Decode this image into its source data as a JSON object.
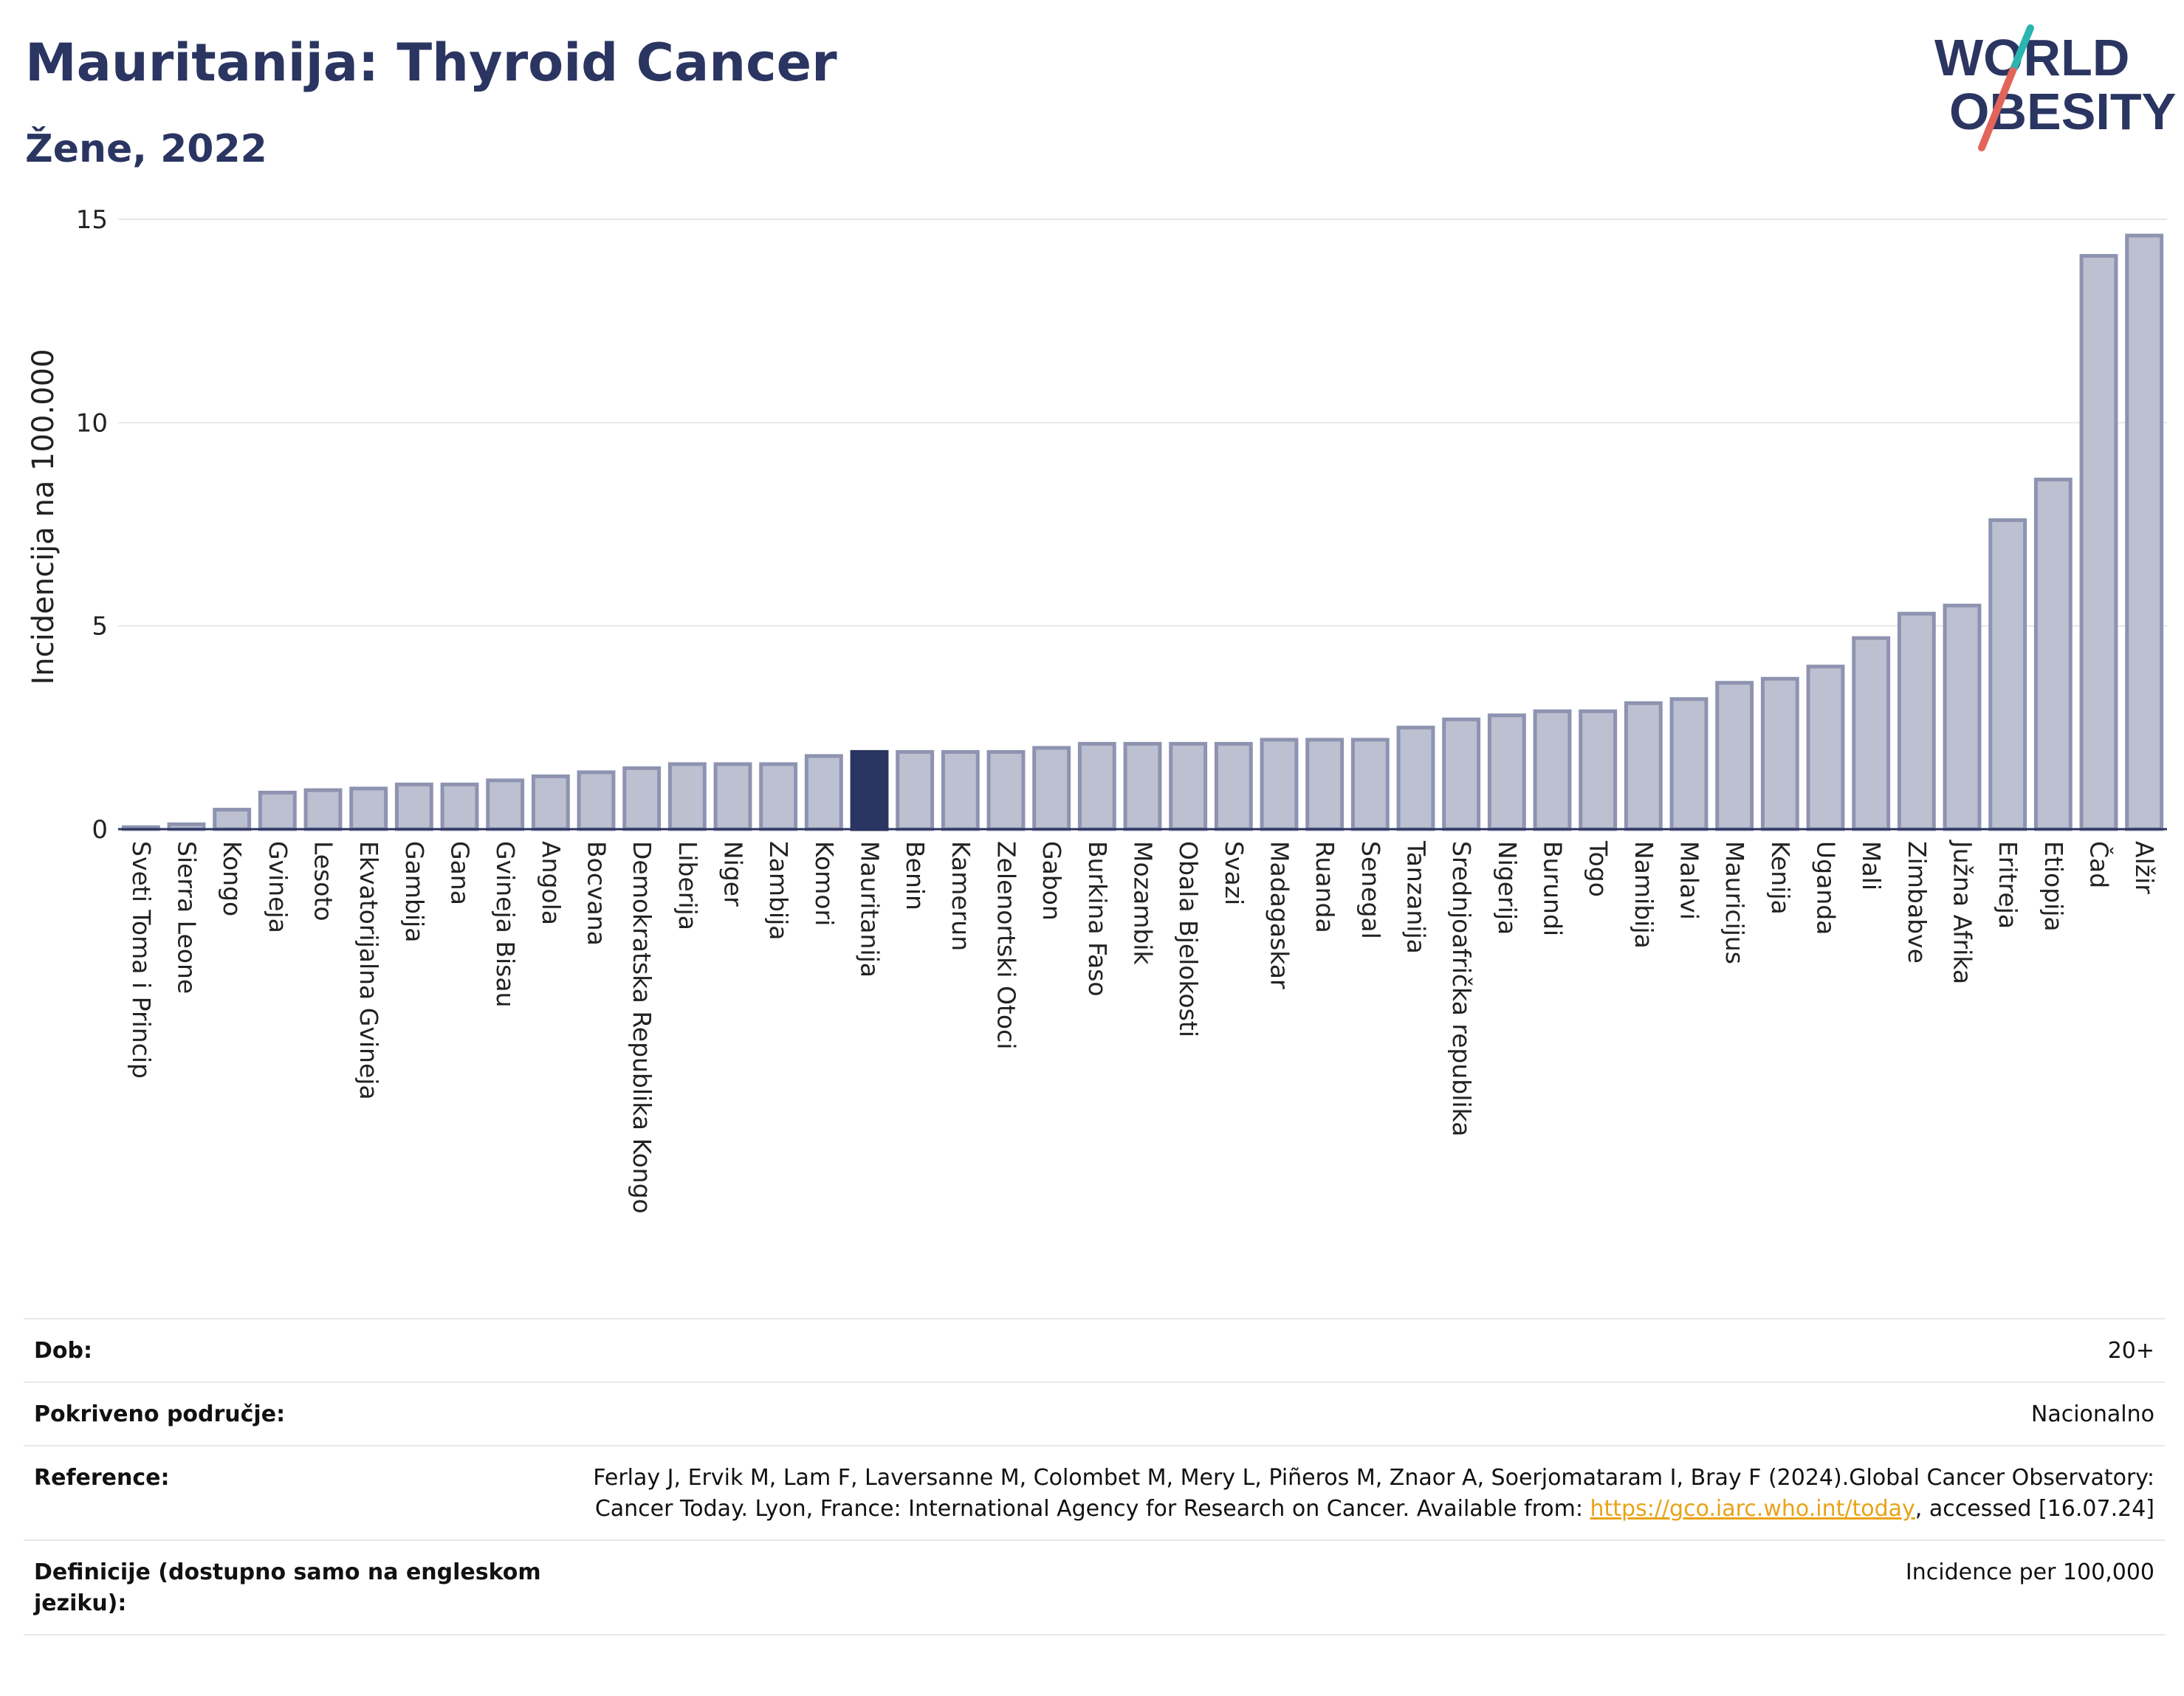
{
  "header": {
    "title": "Mauritanija: Thyroid Cancer",
    "subtitle": "Žene, 2022"
  },
  "logo": {
    "line1": "WORLD",
    "line2": "OBESITY"
  },
  "colors": {
    "bar": "#bcc0d0",
    "bar_border": "#8d93b0",
    "highlight": "#2b3561",
    "accent_teal": "#2bb5b0",
    "accent_red": "#e2645a"
  },
  "chart_data": {
    "type": "bar",
    "ylabel": "Incidencija na 100.000",
    "xlabel": "",
    "ylim": [
      0,
      15
    ],
    "yticks": [
      0,
      5,
      10,
      15
    ],
    "highlight": "Mauritanija",
    "grid": true,
    "categories": [
      "Sveti Toma i Princip",
      "Sierra Leone",
      "Kongo",
      "Gvineja",
      "Lesoto",
      "Ekvatorijalna Gvineja",
      "Gambija",
      "Gana",
      "Gvineja Bisau",
      "Angola",
      "Bocvana",
      "Demokratska Republika Kongo",
      "Liberija",
      "Niger",
      "Zambija",
      "Komori",
      "Mauritanija",
      "Benin",
      "Kamerun",
      "Zelenortski Otoci",
      "Gabon",
      "Burkina Faso",
      "Mozambik",
      "Obala Bjelokosti",
      "Svazi",
      "Madagaskar",
      "Ruanda",
      "Senegal",
      "Tanzanija",
      "Srednjoafrička republika",
      "Nigerija",
      "Burundi",
      "Togo",
      "Namibija",
      "Malavi",
      "Mauricijus",
      "Kenija",
      "Uganda",
      "Mali",
      "Zimbabve",
      "Južna Afrika",
      "Eritreja",
      "Etiopija",
      "Čad",
      "Alžir"
    ],
    "values": [
      0.05,
      0.12,
      0.48,
      0.9,
      0.96,
      1.0,
      1.1,
      1.1,
      1.2,
      1.3,
      1.4,
      1.5,
      1.6,
      1.6,
      1.6,
      1.8,
      1.9,
      1.9,
      1.9,
      1.9,
      2.0,
      2.1,
      2.1,
      2.1,
      2.1,
      2.2,
      2.2,
      2.2,
      2.5,
      2.7,
      2.8,
      2.9,
      2.9,
      3.1,
      3.2,
      3.6,
      3.7,
      4.0,
      4.7,
      5.3,
      5.5,
      7.6,
      8.6,
      14.1,
      14.6
    ]
  },
  "meta": [
    {
      "label": "Dob:",
      "value": "20+"
    },
    {
      "label": "Pokriveno područje:",
      "value": "Nacionalno"
    },
    {
      "label": "Reference:",
      "value_pre": "Ferlay J, Ervik M, Lam F, Laversanne M, Colombet M, Mery L, Piñeros M, Znaor A, Soerjomataram I, Bray F (2024).Global Cancer Observatory: Cancer Today. Lyon, France: International Agency for Research on Cancer. Available from: ",
      "link": "https://gco.iarc.who.int/today",
      "value_post": ", accessed [16.07.24]"
    },
    {
      "label": "Definicije (dostupno samo na engleskom jeziku):",
      "value": "Incidence per 100,000"
    }
  ]
}
